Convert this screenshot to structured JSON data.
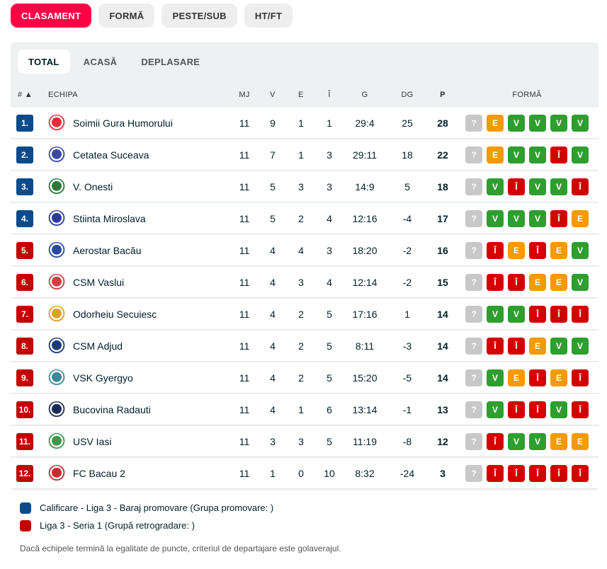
{
  "top_tabs": [
    {
      "label": "CLASAMENT",
      "active": true
    },
    {
      "label": "FORMĂ",
      "active": false
    },
    {
      "label": "PESTE/SUB",
      "active": false
    },
    {
      "label": "HT/FT",
      "active": false
    }
  ],
  "sub_tabs": [
    {
      "label": "TOTAL",
      "active": true
    },
    {
      "label": "ACASĂ",
      "active": false
    },
    {
      "label": "DEPLASARE",
      "active": false
    }
  ],
  "columns": {
    "rank": "# ▲",
    "team": "ECHIPA",
    "mj": "MJ",
    "v": "V",
    "e": "E",
    "i": "Î",
    "goals": "G",
    "dg": "DG",
    "p": "P",
    "form": "FORMĂ"
  },
  "colors": {
    "promotion": "#0a4b8c",
    "relegation": "#c40000",
    "win": "#2e9e2e",
    "draw": "#f59a00",
    "loss": "#d40000",
    "unknown": "#c8c8c8"
  },
  "rows": [
    {
      "rank": "1.",
      "zone": "promotion",
      "team": "Soimii Gura Humorului",
      "logo": "#e0303a",
      "mj": "11",
      "v": "9",
      "e": "1",
      "i": "1",
      "g": "29:4",
      "dg": "25",
      "p": "28",
      "form": [
        "?",
        "E",
        "V",
        "V",
        "V",
        "V"
      ]
    },
    {
      "rank": "2.",
      "zone": "promotion",
      "team": "Cetatea Suceava",
      "logo": "#3a4aa0",
      "mj": "11",
      "v": "7",
      "e": "1",
      "i": "3",
      "g": "29:11",
      "dg": "18",
      "p": "22",
      "form": [
        "?",
        "E",
        "V",
        "V",
        "Î",
        "V"
      ]
    },
    {
      "rank": "3.",
      "zone": "promotion",
      "team": "V. Onesti",
      "logo": "#2a7a3a",
      "mj": "11",
      "v": "5",
      "e": "3",
      "i": "3",
      "g": "14:9",
      "dg": "5",
      "p": "18",
      "form": [
        "?",
        "V",
        "Î",
        "V",
        "V",
        "Î"
      ]
    },
    {
      "rank": "4.",
      "zone": "promotion",
      "team": "Stiinta Miroslava",
      "logo": "#2a3a9a",
      "mj": "11",
      "v": "5",
      "e": "2",
      "i": "4",
      "g": "12:16",
      "dg": "-4",
      "p": "17",
      "form": [
        "?",
        "V",
        "V",
        "V",
        "Î",
        "E"
      ]
    },
    {
      "rank": "5.",
      "zone": "relegation",
      "team": "Aerostar Bacău",
      "logo": "#2a4aa0",
      "mj": "11",
      "v": "4",
      "e": "4",
      "i": "3",
      "g": "18:20",
      "dg": "-2",
      "p": "16",
      "form": [
        "?",
        "Î",
        "E",
        "Î",
        "E",
        "V"
      ]
    },
    {
      "rank": "6.",
      "zone": "relegation",
      "team": "CSM Vaslui",
      "logo": "#d04040",
      "mj": "11",
      "v": "4",
      "e": "3",
      "i": "4",
      "g": "12:14",
      "dg": "-2",
      "p": "15",
      "form": [
        "?",
        "Î",
        "Î",
        "E",
        "E",
        "V"
      ]
    },
    {
      "rank": "7.",
      "zone": "relegation",
      "team": "Odorheiu Secuiesc",
      "logo": "#e0a020",
      "mj": "11",
      "v": "4",
      "e": "2",
      "i": "5",
      "g": "17:16",
      "dg": "1",
      "p": "14",
      "form": [
        "?",
        "V",
        "V",
        "Î",
        "Î",
        "Î"
      ]
    },
    {
      "rank": "8.",
      "zone": "relegation",
      "team": "CSM Adjud",
      "logo": "#1a3a7a",
      "mj": "11",
      "v": "4",
      "e": "2",
      "i": "5",
      "g": "8:11",
      "dg": "-3",
      "p": "14",
      "form": [
        "?",
        "Î",
        "Î",
        "E",
        "V",
        "V"
      ]
    },
    {
      "rank": "9.",
      "zone": "relegation",
      "team": "VSK Gyergyo",
      "logo": "#3a8a9a",
      "mj": "11",
      "v": "4",
      "e": "2",
      "i": "5",
      "g": "15:20",
      "dg": "-5",
      "p": "14",
      "form": [
        "?",
        "V",
        "E",
        "Î",
        "E",
        "Î"
      ]
    },
    {
      "rank": "10.",
      "zone": "relegation",
      "team": "Bucovina Radauti",
      "logo": "#1a2a5a",
      "mj": "11",
      "v": "4",
      "e": "1",
      "i": "6",
      "g": "13:14",
      "dg": "-1",
      "p": "13",
      "form": [
        "?",
        "V",
        "Î",
        "Î",
        "V",
        "Î"
      ]
    },
    {
      "rank": "11.",
      "zone": "relegation",
      "team": "USV Iasi",
      "logo": "#3a9a4a",
      "mj": "11",
      "v": "3",
      "e": "3",
      "i": "5",
      "g": "11:19",
      "dg": "-8",
      "p": "12",
      "form": [
        "?",
        "Î",
        "V",
        "V",
        "E",
        "E"
      ]
    },
    {
      "rank": "12.",
      "zone": "relegation",
      "team": "FC Bacau 2",
      "logo": "#c03030",
      "mj": "11",
      "v": "1",
      "e": "0",
      "i": "10",
      "g": "8:32",
      "dg": "-24",
      "p": "3",
      "form": [
        "?",
        "Î",
        "Î",
        "Î",
        "Î",
        "Î"
      ]
    }
  ],
  "legend": [
    {
      "zone": "promotion",
      "label": "Calificare - Liga 3 - Baraj promovare (Grupa promovare: )"
    },
    {
      "zone": "relegation",
      "label": "Liga 3 - Seria 1 (Grupă retrogradare: )"
    }
  ],
  "footnote": "Dacă echipele termină la egalitate de puncte, criteriul de departajare este golaverajul."
}
